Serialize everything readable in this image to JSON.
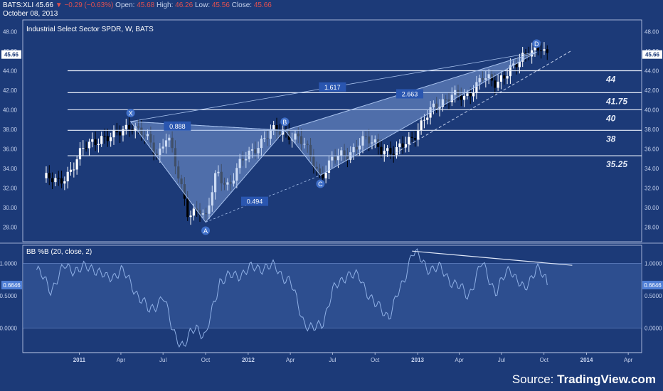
{
  "header": {
    "symbol": "BATS:XLI",
    "last": "45.66",
    "change": "−0.29 (−0.63%)",
    "open_label": "Open:",
    "open": "45.68",
    "high_label": "High:",
    "high": "46.26",
    "low_label": "Low:",
    "low": "45.56",
    "close_label": "Close:",
    "close": "45.66",
    "date": "October 08, 2013"
  },
  "main_title": "Industrial Select Sector SPDR, W, BATS",
  "indicator_title": "BB %B (20, close, 2)",
  "source": {
    "prefix": "Source: ",
    "brand": "TradingView.com"
  },
  "colors": {
    "background": "#1c3a78",
    "pattern": "#8fb0e6",
    "up_candle": "#ffffff",
    "down_candle": "#000000",
    "line": "#8fb0e6"
  },
  "chart_data": [
    {
      "type": "candlestick",
      "y_ticks": [
        "28.00",
        "30.00",
        "32.00",
        "34.00",
        "36.00",
        "38.00",
        "40.00",
        "42.00",
        "44.00",
        "46.00",
        "48.00"
      ],
      "ylim": [
        26.5,
        49.2
      ],
      "x_tick_labels": [
        "2011",
        "Apr",
        "Jul",
        "Oct",
        "2012",
        "Apr",
        "Jul",
        "Oct",
        "2013",
        "Apr",
        "Jul",
        "Oct",
        "2014",
        "Apr"
      ],
      "last_price_label": "45.66",
      "close_path": [
        [
          "2010-10-15",
          33.0
        ],
        [
          "2010-11-15",
          32.5
        ],
        [
          "2010-12-15",
          34.0
        ],
        [
          "2011-01-15",
          36.2
        ],
        [
          "2011-02-15",
          37.3
        ],
        [
          "2011-03-15",
          37.0
        ],
        [
          "2011-04-22",
          38.7
        ],
        [
          "2011-05-20",
          37.3
        ],
        [
          "2011-06-20",
          35.4
        ],
        [
          "2011-07-10",
          37.8
        ],
        [
          "2011-08-05",
          32.5
        ],
        [
          "2011-08-25",
          29.3
        ],
        [
          "2011-09-15",
          30.2
        ],
        [
          "2011-10-01",
          28.5
        ],
        [
          "2011-10-25",
          33.7
        ],
        [
          "2011-11-20",
          32.3
        ],
        [
          "2011-12-20",
          34.7
        ],
        [
          "2012-01-20",
          36.5
        ],
        [
          "2012-02-20",
          37.6
        ],
        [
          "2012-03-20",
          37.9
        ],
        [
          "2012-04-20",
          37.0
        ],
        [
          "2012-05-20",
          34.8
        ],
        [
          "2012-06-05",
          33.3
        ],
        [
          "2012-07-01",
          34.8
        ],
        [
          "2012-08-01",
          35.5
        ],
        [
          "2012-09-01",
          36.8
        ],
        [
          "2012-10-01",
          36.5
        ],
        [
          "2012-11-15",
          35.5
        ],
        [
          "2012-12-15",
          37.0
        ],
        [
          "2013-01-15",
          39.0
        ],
        [
          "2013-02-15",
          40.5
        ],
        [
          "2013-03-15",
          41.8
        ],
        [
          "2013-04-15",
          40.8
        ],
        [
          "2013-05-20",
          43.8
        ],
        [
          "2013-06-20",
          42.2
        ],
        [
          "2013-07-20",
          44.6
        ],
        [
          "2013-08-20",
          45.2
        ],
        [
          "2013-09-25",
          46.8
        ],
        [
          "2013-10-08",
          45.66
        ]
      ],
      "harmonic_pattern": {
        "points": [
          {
            "label": "X",
            "date": "2011-04-22",
            "price": 38.8
          },
          {
            "label": "A",
            "date": "2011-10-01",
            "price": 28.5
          },
          {
            "label": "B",
            "date": "2012-03-20",
            "price": 37.9
          },
          {
            "label": "C",
            "date": "2012-06-05",
            "price": 33.3
          },
          {
            "label": "D",
            "date": "2013-09-15",
            "price": 45.9
          }
        ],
        "ratios": [
          {
            "label": "0.888",
            "date": "2011-08-01",
            "price": 38.3
          },
          {
            "label": "0.494",
            "date": "2012-01-15",
            "price": 30.6
          },
          {
            "label": "1.617",
            "date": "2012-07-01",
            "price": 42.3
          },
          {
            "label": "2.663",
            "date": "2012-12-15",
            "price": 41.6
          }
        ]
      },
      "horizontal_levels": [
        {
          "label": "44",
          "price": 44.0
        },
        {
          "label": "41.75",
          "price": 41.75
        },
        {
          "label": "40",
          "price": 40.0
        },
        {
          "label": "38",
          "price": 37.9
        },
        {
          "label": "35.25",
          "price": 35.3
        }
      ],
      "trendline": {
        "from": [
          "2012-11-15",
          35.6
        ],
        "to": [
          "2013-12-01",
          46.1
        ]
      }
    },
    {
      "type": "line",
      "title": "BB %B (20, close, 2)",
      "y_ticks": [
        "0.0000",
        "0.5000",
        "1.0000"
      ],
      "ylim": [
        -0.38,
        1.28
      ],
      "last_value_label": "0.6646",
      "band": [
        0,
        1
      ],
      "values": [
        [
          "2010-10-01",
          0.9
        ],
        [
          "2010-11-01",
          0.6
        ],
        [
          "2010-12-01",
          0.95
        ],
        [
          "2011-01-01",
          0.9
        ],
        [
          "2011-02-01",
          0.95
        ],
        [
          "2011-03-01",
          0.75
        ],
        [
          "2011-04-01",
          0.9
        ],
        [
          "2011-05-01",
          0.6
        ],
        [
          "2011-06-01",
          0.25
        ],
        [
          "2011-07-01",
          0.5
        ],
        [
          "2011-07-20",
          0.0
        ],
        [
          "2011-08-15",
          -0.3
        ],
        [
          "2011-09-10",
          0.05
        ],
        [
          "2011-10-01",
          -0.15
        ],
        [
          "2011-11-01",
          0.75
        ],
        [
          "2011-12-01",
          0.8
        ],
        [
          "2012-01-01",
          0.9
        ],
        [
          "2012-02-01",
          0.95
        ],
        [
          "2012-03-01",
          0.93
        ],
        [
          "2012-04-01",
          0.7
        ],
        [
          "2012-05-01",
          0.1
        ],
        [
          "2012-05-20",
          -0.05
        ],
        [
          "2012-06-10",
          0.1
        ],
        [
          "2012-07-01",
          0.55
        ],
        [
          "2012-08-01",
          0.85
        ],
        [
          "2012-09-01",
          0.75
        ],
        [
          "2012-10-01",
          0.35
        ],
        [
          "2012-11-01",
          0.2
        ],
        [
          "2012-12-01",
          0.7
        ],
        [
          "2012-12-20",
          1.2
        ],
        [
          "2013-01-20",
          0.95
        ],
        [
          "2013-02-20",
          0.9
        ],
        [
          "2013-03-20",
          0.7
        ],
        [
          "2013-04-20",
          0.5
        ],
        [
          "2013-05-20",
          1.0
        ],
        [
          "2013-06-20",
          0.55
        ],
        [
          "2013-07-20",
          0.95
        ],
        [
          "2013-08-20",
          0.55
        ],
        [
          "2013-09-15",
          0.98
        ],
        [
          "2013-10-08",
          0.6646
        ]
      ],
      "divergence_line": {
        "from": [
          "2012-12-20",
          1.19
        ],
        "to": [
          "2013-12-01",
          0.97
        ]
      }
    }
  ]
}
